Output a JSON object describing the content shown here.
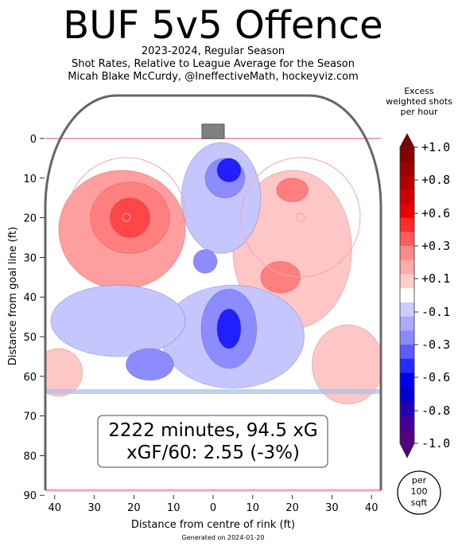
{
  "header": {
    "title": "BUF 5v5 Offence",
    "subtitle_lines": [
      "2023-2024, Regular Season",
      "Shot Rates, Relative to League Average for the Season",
      "Micah Blake McCurdy, @IneffectiveMath, hockeyviz.com"
    ]
  },
  "colorbar": {
    "title_lines": [
      "Excess",
      "weighted shots",
      "per hour"
    ],
    "tick_labels": [
      "+1.0",
      "+0.8",
      "+0.6",
      "+0.3",
      "+0.1",
      "-0.1",
      "-0.3",
      "-0.6",
      "-0.8",
      "-1.0"
    ],
    "colors": [
      "#800000",
      "#990000",
      "#b30000",
      "#d00000",
      "#ee0000",
      "#ff2a2a",
      "#ff5c5c",
      "#ff8a8a",
      "#ffaaaa",
      "#ffcccc",
      "#ffffff",
      "#ccccff",
      "#aaaaff",
      "#8a8aff",
      "#5c5cff",
      "#2a2aff",
      "#0000ee",
      "#0000d0",
      "#2200b3",
      "#440099",
      "#550080"
    ]
  },
  "unit_badge": [
    "per",
    "100",
    "sqft"
  ],
  "stats_box": {
    "line1": "2222 minutes, 94.5 xG",
    "line2": "xGF/60: 2.55 (-3%)"
  },
  "footer": {
    "generated": "Generated on 2024-01-20"
  },
  "chart_data": {
    "type": "heatmap",
    "xlabel": "Distance from centre of rink (ft)",
    "ylabel": "Distance from goal line (ft)",
    "xlim": [
      -42.5,
      42.5
    ],
    "ylim": [
      -11,
      90
    ],
    "x_ticks": [
      -40,
      -30,
      -20,
      -10,
      0,
      10,
      20,
      30,
      40
    ],
    "x_tick_labels": [
      "40",
      "30",
      "20",
      "10",
      "0",
      "10",
      "20",
      "30",
      "40"
    ],
    "y_ticks": [
      0,
      10,
      20,
      30,
      40,
      50,
      60,
      70,
      80,
      90
    ],
    "y_tick_labels": [
      "0",
      "10",
      "20",
      "30",
      "40",
      "50",
      "60",
      "70",
      "80",
      "90"
    ],
    "regions": [
      {
        "x": -23,
        "y": 23,
        "rx": 16,
        "ry": 15,
        "value": 0.2
      },
      {
        "x": -21,
        "y": 20,
        "rx": 10,
        "ry": 9,
        "value": 0.35
      },
      {
        "x": -21,
        "y": 20,
        "rx": 5,
        "ry": 5,
        "value": 0.5
      },
      {
        "x": -39,
        "y": 59,
        "rx": 6,
        "ry": 6,
        "value": 0.1
      },
      {
        "x": 20,
        "y": 28,
        "rx": 15,
        "ry": 20,
        "value": 0.1
      },
      {
        "x": 20,
        "y": 13,
        "rx": 4,
        "ry": 3,
        "value": 0.3
      },
      {
        "x": 17,
        "y": 35,
        "rx": 5,
        "ry": 4,
        "value": 0.3
      },
      {
        "x": 34,
        "y": 57,
        "rx": 9,
        "ry": 10,
        "value": 0.1
      },
      {
        "x": 2,
        "y": 15,
        "rx": 10,
        "ry": 14,
        "value": -0.1
      },
      {
        "x": 3,
        "y": 10,
        "rx": 5,
        "ry": 5,
        "value": -0.3
      },
      {
        "x": 4,
        "y": 8,
        "rx": 3,
        "ry": 3,
        "value": -0.6
      },
      {
        "x": 5,
        "y": 50,
        "rx": 18,
        "ry": 13,
        "value": -0.1
      },
      {
        "x": 4,
        "y": 48,
        "rx": 7,
        "ry": 10,
        "value": -0.3
      },
      {
        "x": 4,
        "y": 48,
        "rx": 3,
        "ry": 5,
        "value": -0.6
      },
      {
        "x": -24,
        "y": 46,
        "rx": 17,
        "ry": 9,
        "value": -0.1
      },
      {
        "x": -16,
        "y": 57,
        "rx": 6,
        "ry": 4,
        "value": -0.3
      },
      {
        "x": -2,
        "y": 31,
        "rx": 3,
        "ry": 3,
        "value": -0.3
      }
    ]
  }
}
